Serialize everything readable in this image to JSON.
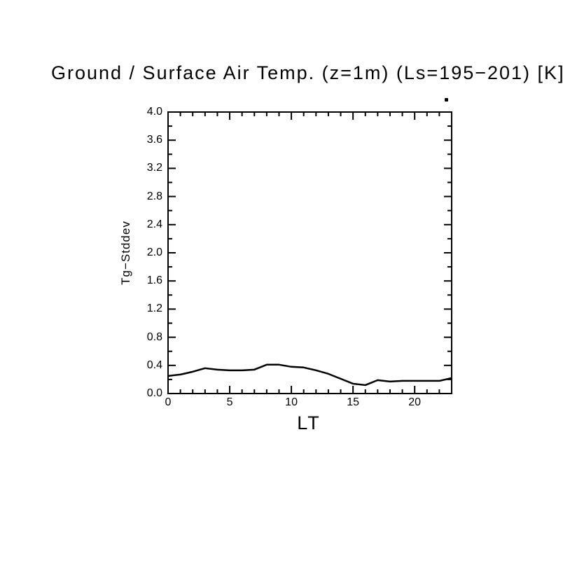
{
  "window": {
    "background": "#ffffff",
    "foreground": "#000000"
  },
  "chart_data": {
    "type": "line",
    "title": "Ground / Surface Air Temp. (z=1m) (Ls=195−201) [K]",
    "xlabel": "LT",
    "ylabel": "Tg−Stddev",
    "xlim": [
      0,
      23
    ],
    "ylim": [
      0.0,
      4.0
    ],
    "grid": false,
    "legend": null,
    "line_color": "#000000",
    "axis_color": "#000000",
    "x_major_ticks": [
      0,
      5,
      10,
      15,
      20
    ],
    "x_tick_labels": [
      "0",
      "5",
      "10",
      "15",
      "20"
    ],
    "x_minor_tick_step": 1,
    "y_major_tick_step": 0.4,
    "y_minor_tick_step": 0.2,
    "y_tick_labels": [
      "0.0",
      "0.4",
      "0.8",
      "1.2",
      "1.6",
      "2.0",
      "2.4",
      "2.8",
      "3.2",
      "3.6",
      "4.0"
    ],
    "series": [
      {
        "name": "Tg-Stddev",
        "x": [
          0,
          1,
          2,
          3,
          4,
          5,
          6,
          7,
          8,
          9,
          10,
          11,
          12,
          13,
          14,
          15,
          16,
          17,
          18,
          19,
          20,
          21,
          22,
          23
        ],
        "y": [
          0.25,
          0.27,
          0.31,
          0.36,
          0.34,
          0.33,
          0.33,
          0.34,
          0.41,
          0.41,
          0.38,
          0.37,
          0.33,
          0.28,
          0.21,
          0.14,
          0.12,
          0.19,
          0.17,
          0.18,
          0.18,
          0.18,
          0.18,
          0.22
        ]
      }
    ]
  }
}
